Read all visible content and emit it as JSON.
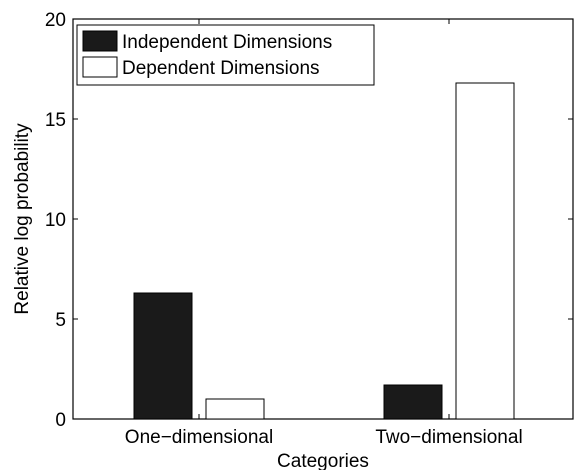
{
  "chart_data": {
    "type": "bar",
    "title": "",
    "xlabel": "Categories",
    "ylabel": "Relative log probability",
    "categories": [
      "One−dimensional",
      "Two−dimensional"
    ],
    "series": [
      {
        "name": "Independent Dimensions",
        "values": [
          6.3,
          1.7
        ],
        "color": "#1a1a1a"
      },
      {
        "name": "Dependent Dimensions",
        "values": [
          1.0,
          16.8
        ],
        "color": "#ffffff"
      }
    ],
    "ylim": [
      0,
      20
    ],
    "yticks": [
      "0",
      "5",
      "10",
      "15",
      "20"
    ],
    "legend_position": "top-left",
    "grid": false
  }
}
